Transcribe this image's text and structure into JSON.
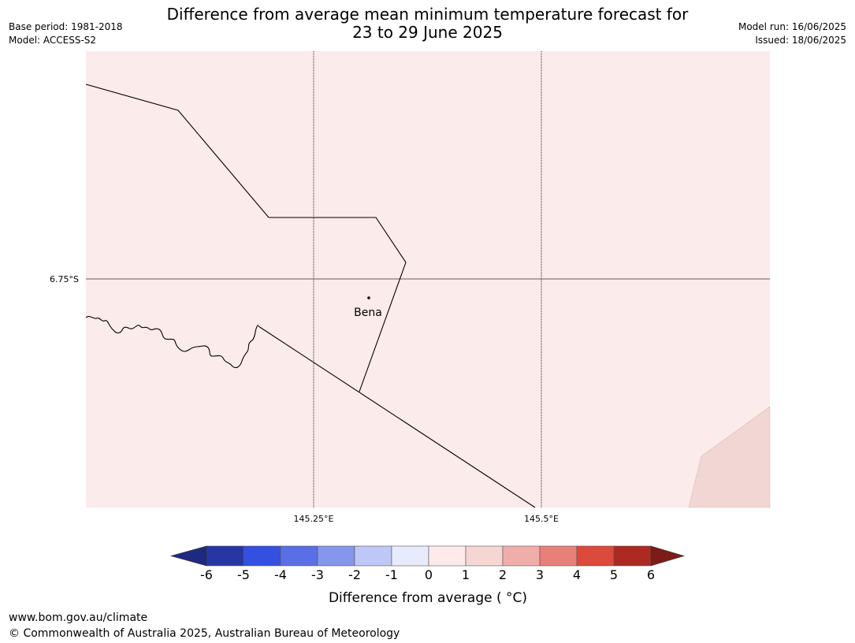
{
  "title_line1": "Difference from average mean minimum temperature forecast for",
  "title_line2": "23 to 29 June 2025",
  "base_period": "Base period: 1981-2018",
  "model": "Model: ACCESS-S2",
  "model_run": "Model run: 16/06/2025",
  "issued": "Issued: 18/06/2025",
  "map": {
    "background_color": "#fbebea",
    "lat_label": "6.75°S",
    "lon_labels": [
      "145.25°E",
      "145.5°E"
    ],
    "place": "Bena",
    "corner_fill_color": "#f2d6d3"
  },
  "colorbar": {
    "ticks": [
      "-6",
      "-5",
      "-4",
      "-3",
      "-2",
      "-1",
      "0",
      "1",
      "2",
      "3",
      "4",
      "5",
      "6"
    ],
    "colors": [
      "#2636a3",
      "#3350e0",
      "#5a6fe6",
      "#8596ec",
      "#bec7f5",
      "#e8ebfc",
      "#fcebea",
      "#f5d6d3",
      "#efaea9",
      "#e8807a",
      "#dc4a3c",
      "#ad2a22"
    ],
    "low_extend_color": "#1e2a7f",
    "high_extend_color": "#7d1b17",
    "label": "Difference from average ( °C)"
  },
  "footer_url": "www.bom.gov.au/climate",
  "footer_copyright": "© Commonwealth of Australia 2025, Australian Bureau of Meteorology"
}
